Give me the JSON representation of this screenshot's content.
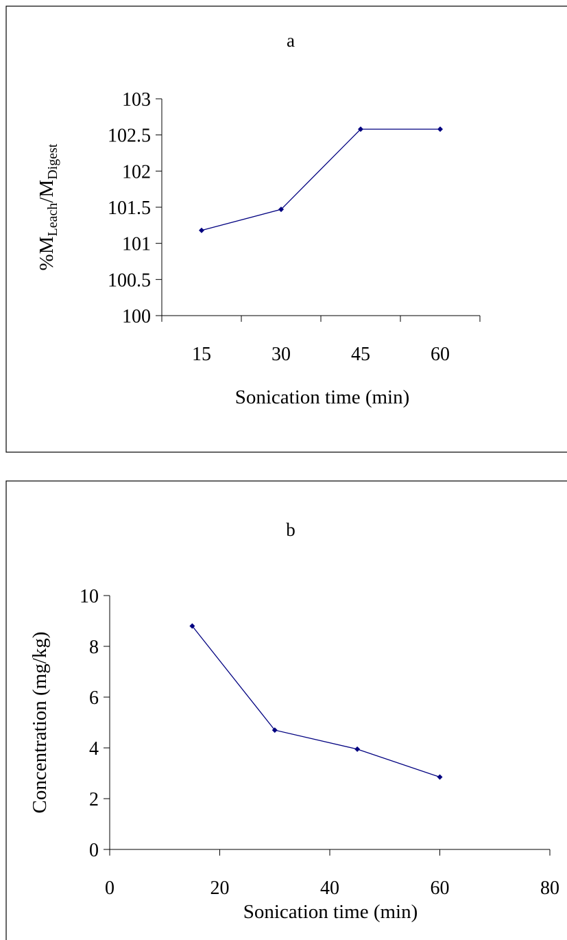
{
  "chart_data": [
    {
      "type": "line",
      "title": "a",
      "xlabel": "Sonication time (min)",
      "ylabel": {
        "prefix": "%M",
        "sub1": "Leach",
        "mid": "/M",
        "sub2": "Digest"
      },
      "categories": [
        "15",
        "30",
        "45",
        "60"
      ],
      "ylim": [
        100,
        103
      ],
      "yticks": [
        "100",
        "100.5",
        "101",
        "101.5",
        "102",
        "102.5",
        "103"
      ],
      "series": [
        {
          "values": [
            101.18,
            101.47,
            102.58,
            102.58
          ]
        }
      ],
      "grid": false,
      "line_color": "#000080"
    },
    {
      "type": "line",
      "title": "b",
      "xlabel": "Sonication time (min)",
      "ylabel": "Concentration (mg/kg)",
      "xlim": [
        0,
        80
      ],
      "ylim": [
        0,
        10
      ],
      "xticks": [
        "0",
        "20",
        "40",
        "60",
        "80"
      ],
      "yticks": [
        "0",
        "2",
        "4",
        "6",
        "8",
        "10"
      ],
      "series": [
        {
          "x": [
            15,
            30,
            45,
            60
          ],
          "values": [
            8.8,
            4.7,
            3.95,
            2.85
          ]
        }
      ],
      "grid": false,
      "line_color": "#000080"
    }
  ]
}
